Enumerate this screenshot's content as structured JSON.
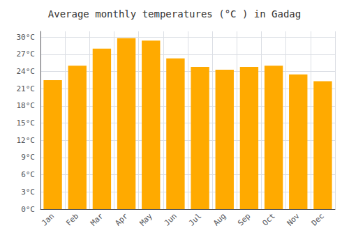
{
  "chart_data": {
    "type": "bar",
    "title": "Average monthly temperatures (°C ) in Gadag",
    "categories": [
      "Jan",
      "Feb",
      "Mar",
      "Apr",
      "May",
      "Jun",
      "Jul",
      "Aug",
      "Sep",
      "Oct",
      "Nov",
      "Dec"
    ],
    "values": [
      22.5,
      25.0,
      28.0,
      29.8,
      29.4,
      26.3,
      24.8,
      24.3,
      24.8,
      25.0,
      23.5,
      22.3
    ],
    "color": "#FFAA00",
    "ylim": [
      0,
      31
    ],
    "yticks": [
      {
        "value": 0,
        "label": "0°C"
      },
      {
        "value": 3,
        "label": "3°C"
      },
      {
        "value": 6,
        "label": "6°C"
      },
      {
        "value": 9,
        "label": "9°C"
      },
      {
        "value": 12,
        "label": "12°C"
      },
      {
        "value": 15,
        "label": "15°C"
      },
      {
        "value": 18,
        "label": "18°C"
      },
      {
        "value": 21,
        "label": "21°C"
      },
      {
        "value": 24,
        "label": "24°C"
      },
      {
        "value": 27,
        "label": "27°C"
      },
      {
        "value": 30,
        "label": "30°C"
      }
    ],
    "grid": true
  }
}
